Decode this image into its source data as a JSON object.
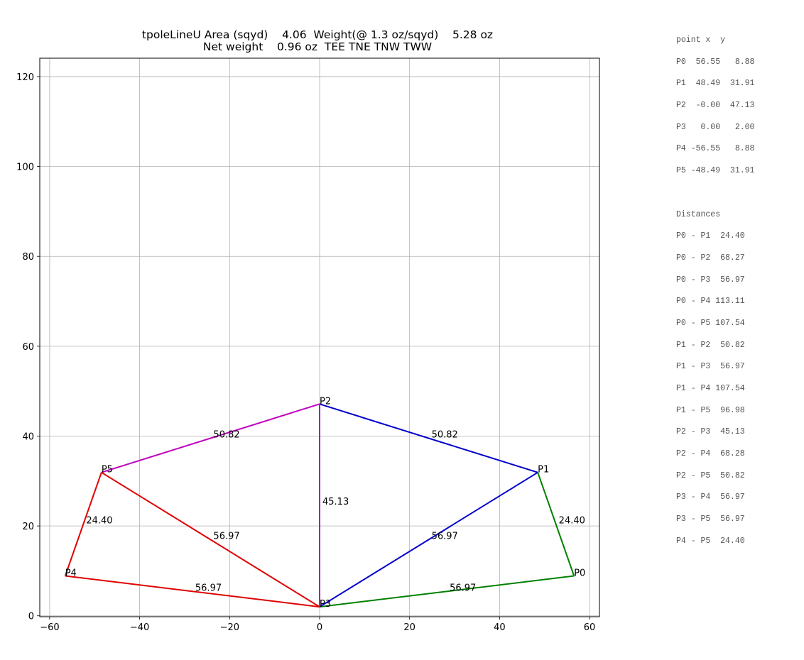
{
  "chart_data": {
    "type": "line",
    "title_line1": "tpoleLineU Area (sqyd)    4.06  Weight(@ 1.3 oz/sqyd)    5.28 oz",
    "title_line2": "Net weight    0.96 oz  TEE TNE TNW TWW",
    "xlim": [
      -62.2,
      62.2
    ],
    "ylim": [
      -0.2,
      124.1
    ],
    "xticks": [
      -60,
      -40,
      -20,
      0,
      20,
      40,
      60
    ],
    "yticks": [
      0,
      20,
      40,
      60,
      80,
      100,
      120
    ],
    "xtick_labels": [
      "−60",
      "−40",
      "−20",
      "0",
      "20",
      "40",
      "60"
    ],
    "ytick_labels": [
      "0",
      "20",
      "40",
      "60",
      "80",
      "100",
      "120"
    ],
    "grid": true,
    "points": [
      {
        "name": "P0",
        "x": 56.55,
        "y": 8.88
      },
      {
        "name": "P1",
        "x": 48.49,
        "y": 31.91
      },
      {
        "name": "P2",
        "x": 0.0,
        "y": 47.13
      },
      {
        "name": "P3",
        "x": 0.0,
        "y": 2.0
      },
      {
        "name": "P4",
        "x": -56.55,
        "y": 8.88
      },
      {
        "name": "P5",
        "x": -48.49,
        "y": 31.91
      }
    ],
    "segments": [
      {
        "from": 0,
        "to": 1,
        "label": "24.40",
        "color": "#008000"
      },
      {
        "from": 0,
        "to": 3,
        "label": "56.97",
        "color": "#008000"
      },
      {
        "from": 1,
        "to": 2,
        "label": "50.82",
        "color": "#0000cc"
      },
      {
        "from": 1,
        "to": 3,
        "label": "56.97",
        "color": "#0000cc"
      },
      {
        "from": 2,
        "to": 3,
        "label": "45.13",
        "color": "#9b1fc8"
      },
      {
        "from": 2,
        "to": 5,
        "label": "50.82",
        "color": "#bf00bf"
      },
      {
        "from": 5,
        "to": 3,
        "label": "56.97",
        "color": "#e00000"
      },
      {
        "from": 5,
        "to": 4,
        "label": "24.40",
        "color": "#e00000"
      },
      {
        "from": 4,
        "to": 3,
        "label": "56.97",
        "color": "#e00000"
      }
    ]
  },
  "side_panel": {
    "points_header": "point x  y",
    "points_rows": [
      "P0  56.55   8.88",
      "P1  48.49  31.91",
      "P2  -0.00  47.13",
      "P3   0.00   2.00",
      "P4 -56.55   8.88",
      "P5 -48.49  31.91"
    ],
    "distances_header": "Distances",
    "distances_rows": [
      "P0 - P1  24.40",
      "P0 - P2  68.27",
      "P0 - P3  56.97",
      "P0 - P4 113.11",
      "P0 - P5 107.54",
      "P1 - P2  50.82",
      "P1 - P3  56.97",
      "P1 - P4 107.54",
      "P1 - P5  96.98",
      "P2 - P3  45.13",
      "P2 - P4  68.28",
      "P2 - P5  50.82",
      "P3 - P4  56.97",
      "P3 - P5  56.97",
      "P4 - P5  24.40"
    ]
  }
}
